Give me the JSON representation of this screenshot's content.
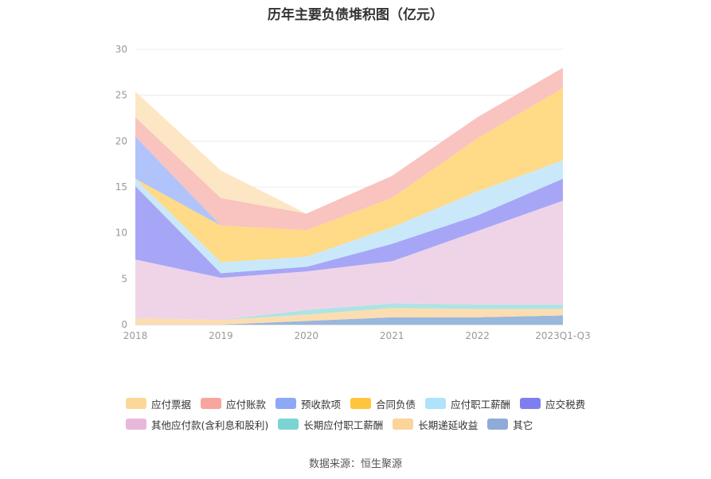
{
  "chart_data": {
    "type": "area",
    "stacked": true,
    "title": "历年主要负债堆积图（亿元）",
    "categories": [
      "2018",
      "2019",
      "2020",
      "2021",
      "2022",
      "2023Q1-Q3"
    ],
    "ylim": [
      0,
      30
    ],
    "yticks": [
      0,
      5,
      10,
      15,
      20,
      25,
      30
    ],
    "grid": true,
    "legend_position": "bottom",
    "series": [
      {
        "name": "其它",
        "color": "#8fafd9",
        "values": [
          0.0,
          0.0,
          0.4,
          0.8,
          0.8,
          1.0
        ]
      },
      {
        "name": "长期递延收益",
        "color": "#fcd9a8",
        "values": [
          0.7,
          0.5,
          0.7,
          1.0,
          0.9,
          0.7
        ]
      },
      {
        "name": "长期应付职工薪酬",
        "color": "#a6e0e0",
        "values": [
          0.0,
          0.0,
          0.5,
          0.5,
          0.5,
          0.5
        ]
      },
      {
        "name": "其他应付款(含利息和股利)",
        "color": "#edcfe6",
        "values": [
          6.4,
          4.6,
          4.2,
          4.6,
          8.0,
          11.3
        ]
      },
      {
        "name": "应交税费",
        "color": "#9d9cf5",
        "values": [
          8.0,
          0.5,
          0.5,
          1.9,
          1.7,
          2.4
        ]
      },
      {
        "name": "应付职工薪酬",
        "color": "#c3e7fa",
        "values": [
          0.8,
          1.2,
          1.1,
          1.8,
          2.6,
          2.0
        ]
      },
      {
        "name": "合同负债",
        "color": "#ffd67a",
        "values": [
          0.0,
          4.0,
          2.9,
          3.2,
          5.8,
          7.9
        ]
      },
      {
        "name": "预收款项",
        "color": "#a9bdfb",
        "values": [
          4.6,
          0.0,
          0.0,
          0.0,
          0.0,
          0.0
        ]
      },
      {
        "name": "应付账款",
        "color": "#f8bcb8",
        "values": [
          2.1,
          3.0,
          1.8,
          2.4,
          2.3,
          2.2
        ]
      },
      {
        "name": "应付票据",
        "color": "#fde3bd",
        "values": [
          2.8,
          3.0,
          0.0,
          0.0,
          0.0,
          0.0
        ]
      }
    ]
  },
  "legend": {
    "row1": [
      {
        "name": "应付票据",
        "color": "#fdd79a"
      },
      {
        "name": "应付账款",
        "color": "#f8a59f"
      },
      {
        "name": "预收款项",
        "color": "#8ea8f8"
      },
      {
        "name": "合同负债",
        "color": "#ffc53d"
      },
      {
        "name": "应付职工薪酬",
        "color": "#b0e2fb"
      },
      {
        "name": "应交税费",
        "color": "#7f7ef1"
      }
    ],
    "row2": [
      {
        "name": "其他应付款(含利息和股利)",
        "color": "#e8b8dc"
      },
      {
        "name": "长期应付职工薪酬",
        "color": "#7dd3d3"
      },
      {
        "name": "长期递延收益",
        "color": "#fbd49a"
      },
      {
        "name": "其它",
        "color": "#8facd8"
      }
    ]
  },
  "source_note": "数据来源：恒生聚源"
}
